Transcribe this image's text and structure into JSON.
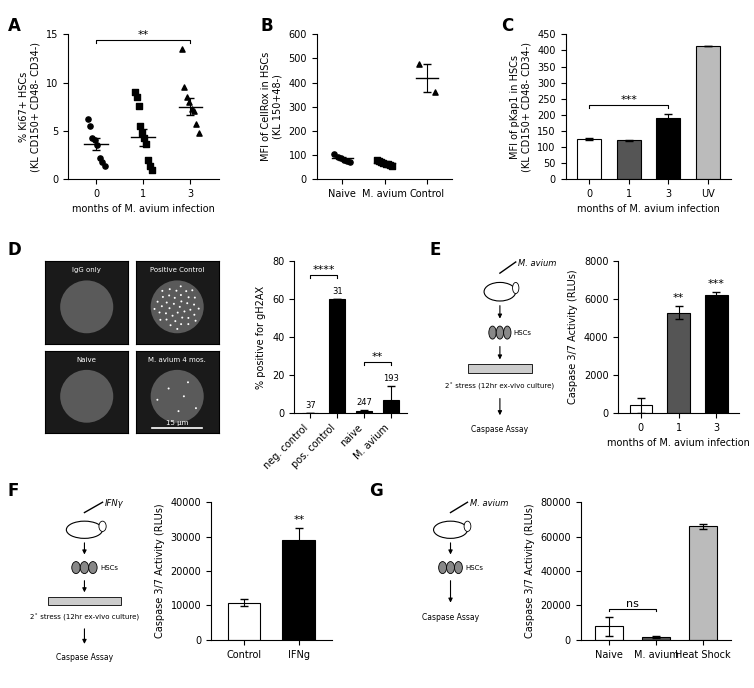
{
  "chart_data": [
    {
      "type": "scatter",
      "panel": "A",
      "color": "#000000",
      "ylabel": "% Ki67+ HSCs\n(KL CD150+ CD48- CD34-)",
      "xlabel": "months of M. avium infection",
      "categories": [
        "0",
        "1",
        "3"
      ],
      "points": [
        [
          6.2,
          5.5,
          4.2,
          4.0,
          3.5,
          2.2,
          1.8,
          1.3
        ],
        [
          9.0,
          8.5,
          7.6,
          5.5,
          4.8,
          4.2,
          3.6,
          2.0,
          1.3,
          0.9
        ],
        [
          13.5,
          9.5,
          8.5,
          8.0,
          7.3,
          7.0,
          5.7,
          4.8
        ]
      ],
      "means": [
        3.6,
        4.3,
        7.5
      ],
      "errors": [
        0.6,
        0.9,
        0.9
      ],
      "ylim": [
        0,
        15
      ],
      "yticks": [
        0,
        5,
        10,
        15
      ],
      "significance": [
        {
          "from": 0,
          "to": 2,
          "label": "**"
        }
      ]
    },
    {
      "type": "scatter",
      "panel": "B",
      "color": "#000000",
      "ylabel": "MFI of CellRox in HSCs\n(KL 150+48-)",
      "categories": [
        "Naive",
        "M. avium",
        "Control"
      ],
      "points": [
        [
          105,
          90,
          85,
          80,
          75,
          70
        ],
        [
          80,
          75,
          70,
          65,
          62,
          60,
          58,
          55
        ],
        [
          475,
          360
        ]
      ],
      "means": [
        85,
        67,
        418
      ],
      "errors": [
        6,
        3,
        57
      ],
      "ylim": [
        0,
        600
      ],
      "yticks": [
        0,
        100,
        200,
        300,
        400,
        500,
        600
      ]
    },
    {
      "type": "bar",
      "panel": "C",
      "ylabel": "MFI of pKap1 in HSCs\n(KL CD150+ CD48- CD34-)",
      "xlabel": "months of M. avium infection",
      "categories": [
        "0",
        "1",
        "3",
        "UV"
      ],
      "values": [
        125,
        120,
        190,
        415
      ],
      "errors": [
        3,
        2,
        12,
        0
      ],
      "colors": [
        "#ffffff",
        "#555555",
        "#000000",
        "#bbbbbb"
      ],
      "ylim": [
        0,
        450
      ],
      "yticks": [
        0,
        50,
        100,
        150,
        200,
        250,
        300,
        350,
        400,
        450
      ],
      "significance": [
        {
          "from": 0,
          "to": 2,
          "label": "***"
        }
      ]
    },
    {
      "type": "bar",
      "panel": "D",
      "ylabel": "% positive for gH2AX",
      "categories": [
        "neg. control",
        "pos. control",
        "naive",
        "M. avium"
      ],
      "values": [
        0,
        60,
        1,
        7
      ],
      "errors": [
        0,
        0,
        0.5,
        7
      ],
      "n_labels": [
        37,
        31,
        247,
        193
      ],
      "colors": [
        "#000000",
        "#000000",
        "#000000",
        "#000000"
      ],
      "ylim": [
        0,
        80
      ],
      "yticks": [
        0,
        20,
        40,
        60,
        80
      ],
      "images": [
        "IgG only",
        "Positive Control",
        "Naive",
        "M. avium 4 mos."
      ],
      "scale_bar": "15 μm",
      "significance": [
        {
          "from": 0,
          "to": 1,
          "label": "****"
        },
        {
          "from": 2,
          "to": 3,
          "label": "**"
        }
      ]
    },
    {
      "type": "bar",
      "panel": "E",
      "ylabel": "Caspase 3/7 Activity (RLUs)",
      "xlabel": "months of M. avium infection",
      "categories": [
        "0",
        "1",
        "3"
      ],
      "values": [
        400,
        5300,
        6250
      ],
      "errors": [
        400,
        350,
        150
      ],
      "colors": [
        "#ffffff",
        "#555555",
        "#000000"
      ],
      "ylim": [
        0,
        8000
      ],
      "yticks": [
        0,
        2000,
        4000,
        6000,
        8000
      ],
      "schematic": [
        "M. avium",
        "HSCs",
        "2˚ stress (12hr ex-vivo culture)",
        "Caspase Assay"
      ],
      "significance": [
        {
          "from": 1,
          "to": 1,
          "label": "**"
        },
        {
          "from": 2,
          "to": 2,
          "label": "***"
        }
      ]
    },
    {
      "type": "bar",
      "panel": "F",
      "ylabel": "Caspase 3/7 Activity (RLUs)",
      "categories": [
        "Control",
        "IFNg"
      ],
      "values": [
        10800,
        29000
      ],
      "errors": [
        1000,
        3500
      ],
      "colors": [
        "#ffffff",
        "#000000"
      ],
      "ylim": [
        0,
        40000
      ],
      "yticks": [
        0,
        10000,
        20000,
        30000,
        40000
      ],
      "schematic": [
        "IFNγ",
        "HSCs",
        "2˚ stress (12hr ex-vivo culture)",
        "Caspase Assay"
      ],
      "significance": [
        {
          "from": 1,
          "to": 1,
          "label": "**"
        }
      ]
    },
    {
      "type": "bar",
      "panel": "G",
      "ylabel": "Caspase 3/7 Activity (RLUs)",
      "categories": [
        "Naive",
        "M. avium",
        "Heat Shock"
      ],
      "values": [
        7800,
        1800,
        66000
      ],
      "errors": [
        5500,
        600,
        1500
      ],
      "colors": [
        "#ffffff",
        "#555555",
        "#bbbbbb"
      ],
      "ylim": [
        0,
        80000
      ],
      "yticks": [
        0,
        20000,
        40000,
        60000,
        80000
      ],
      "schematic": [
        "M. avium",
        "HSCs",
        "Caspase Assay"
      ],
      "significance": [
        {
          "from": 0,
          "to": 1,
          "label": "ns"
        }
      ]
    }
  ]
}
